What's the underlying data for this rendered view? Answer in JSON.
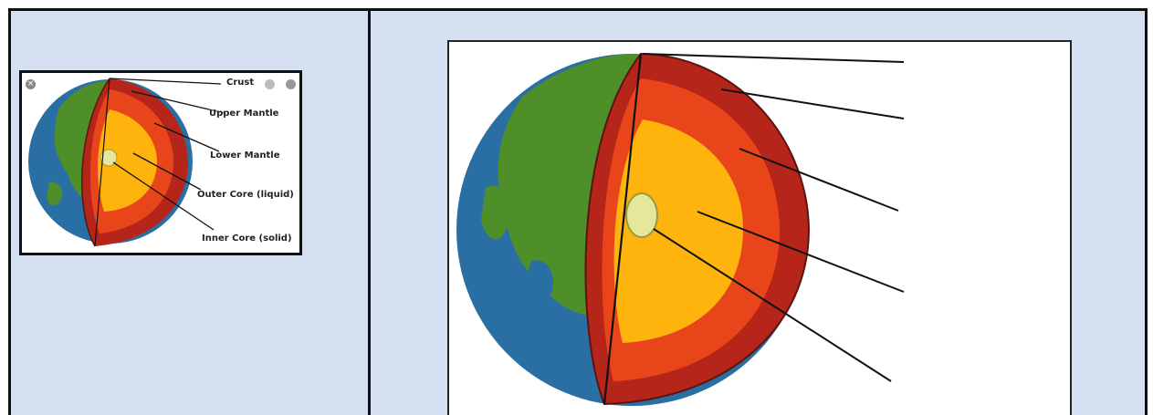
{
  "small_diagram": {
    "labels": {
      "crust": "Crust",
      "upper_mantle": "Upper Mantle",
      "lower_mantle": "Lower Mantle",
      "outer_core": "Outer Core (liquid)",
      "inner_core": "Inner Core (solid)"
    },
    "close_button": "×"
  },
  "colors": {
    "frame_bg": "#d5e1f1",
    "ocean": "#2a6fa4",
    "land": "#4f8f2a",
    "crust": "#b62519",
    "mantle": "#e8461a",
    "outer_core": "#ffb30d",
    "inner_core": "#e6e79a"
  },
  "icons": [
    "close-icon",
    "window-dot-icon"
  ]
}
